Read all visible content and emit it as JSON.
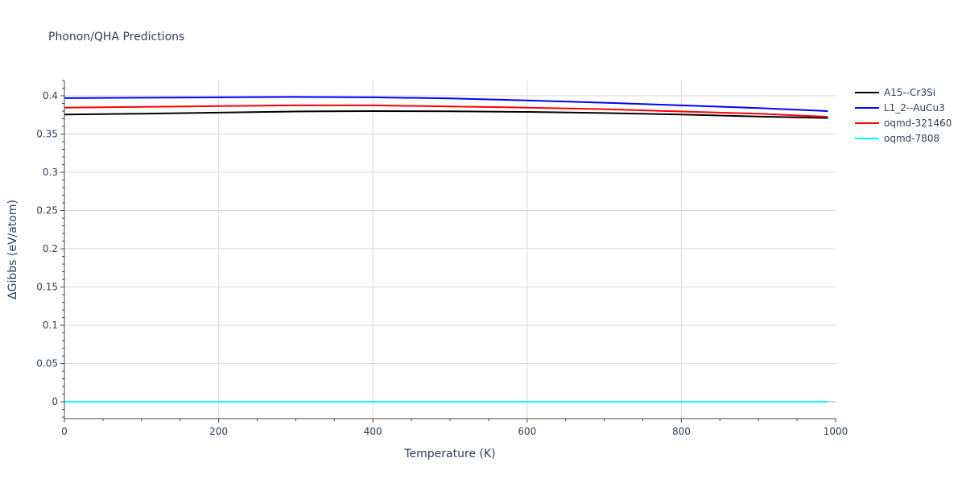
{
  "chart_data": {
    "type": "line",
    "title": "Phonon/QHA Predictions",
    "xlabel": "Temperature (K)",
    "ylabel": "ΔGibbs (eV/atom)",
    "xlim": [
      0,
      1000
    ],
    "ylim": [
      -0.022,
      0.42
    ],
    "xticks": [
      0,
      200,
      400,
      600,
      800,
      1000
    ],
    "xtick_labels": [
      "0",
      "200",
      "400",
      "600",
      "800",
      "1000"
    ],
    "yticks": [
      0,
      0.05,
      0.1,
      0.15,
      0.2,
      0.25,
      0.3,
      0.35,
      0.4
    ],
    "ytick_labels": [
      "0",
      "0.05",
      "0.1",
      "0.15",
      "0.2",
      "0.25",
      "0.3",
      "0.35",
      "0.4"
    ],
    "grid": true,
    "legend_position": "top-right",
    "series": [
      {
        "name": "A15--Cr3Si",
        "color": "#000000",
        "x": [
          0,
          100,
          200,
          300,
          400,
          500,
          600,
          700,
          800,
          900,
          990
        ],
        "y": [
          0.3755,
          0.3765,
          0.378,
          0.3795,
          0.38,
          0.3798,
          0.379,
          0.3775,
          0.3755,
          0.373,
          0.371
        ]
      },
      {
        "name": "L1_2--AuCu3",
        "color": "#0000ff",
        "x": [
          0,
          100,
          200,
          300,
          400,
          500,
          600,
          700,
          800,
          900,
          990
        ],
        "y": [
          0.397,
          0.3975,
          0.398,
          0.3985,
          0.398,
          0.3965,
          0.394,
          0.391,
          0.3875,
          0.384,
          0.38
        ]
      },
      {
        "name": "oqmd-321460",
        "color": "#ff0000",
        "x": [
          0,
          100,
          200,
          300,
          400,
          500,
          600,
          700,
          800,
          900,
          990
        ],
        "y": [
          0.3845,
          0.3855,
          0.3865,
          0.3875,
          0.3875,
          0.386,
          0.3845,
          0.3825,
          0.3795,
          0.3765,
          0.3725
        ]
      },
      {
        "name": "oqmd-7808",
        "color": "#00ffff",
        "x": [
          0,
          100,
          200,
          300,
          400,
          500,
          600,
          700,
          800,
          900,
          990
        ],
        "y": [
          0,
          0,
          0,
          0,
          0,
          0,
          0,
          0,
          0,
          0,
          0
        ]
      }
    ]
  }
}
